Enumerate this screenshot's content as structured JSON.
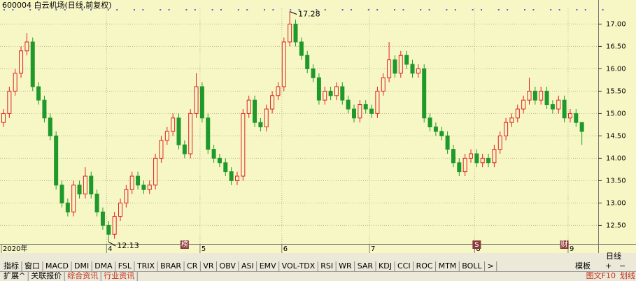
{
  "chart_data": {
    "type": "candlestick",
    "title": "600004 白云机场(日线,前复权)",
    "categories": [
      "2020年",
      null,
      null,
      null,
      null,
      null,
      null,
      null,
      null,
      null,
      null,
      null,
      null,
      null,
      null,
      null,
      null,
      null,
      "4",
      null,
      null,
      null,
      null,
      null,
      null,
      null,
      null,
      null,
      null,
      null,
      null,
      null,
      null,
      null,
      "5",
      null,
      null,
      null,
      null,
      null,
      null,
      null,
      null,
      null,
      null,
      null,
      null,
      null,
      "6",
      null,
      null,
      null,
      null,
      null,
      null,
      null,
      null,
      null,
      null,
      null,
      null,
      null,
      null,
      "7",
      null,
      null,
      null,
      null,
      null,
      null,
      null,
      null,
      null,
      null,
      null,
      null,
      null,
      null,
      null,
      null,
      null,
      "8",
      null,
      null,
      null,
      null,
      null,
      null,
      null,
      null,
      null,
      null,
      null,
      null,
      null,
      null,
      null,
      "9",
      null,
      null
    ],
    "events": [
      null,
      null,
      null,
      null,
      null,
      null,
      null,
      null,
      null,
      null,
      null,
      null,
      null,
      null,
      null,
      null,
      null,
      null,
      null,
      null,
      null,
      null,
      null,
      null,
      null,
      null,
      null,
      null,
      null,
      null,
      null,
      "榜",
      null,
      null,
      null,
      null,
      null,
      null,
      null,
      null,
      null,
      null,
      null,
      null,
      null,
      null,
      null,
      null,
      null,
      null,
      null,
      null,
      null,
      null,
      null,
      null,
      null,
      null,
      null,
      null,
      null,
      null,
      null,
      null,
      null,
      null,
      null,
      null,
      null,
      null,
      null,
      null,
      null,
      null,
      null,
      null,
      null,
      null,
      null,
      null,
      null,
      "S",
      null,
      null,
      null,
      null,
      null,
      null,
      null,
      null,
      null,
      null,
      null,
      null,
      null,
      null,
      "财",
      null,
      null,
      null
    ],
    "open": [
      14.8,
      15.0,
      15.5,
      15.9,
      16.4,
      16.6,
      15.6,
      15.3,
      14.9,
      14.5,
      13.4,
      13.0,
      12.8,
      13.4,
      13.2,
      13.6,
      13.2,
      12.8,
      12.5,
      12.3,
      12.7,
      13.0,
      13.3,
      13.6,
      13.4,
      13.3,
      13.4,
      14.0,
      14.4,
      14.6,
      14.9,
      14.3,
      14.1,
      15.0,
      15.6,
      14.9,
      14.2,
      14.0,
      13.9,
      13.7,
      13.5,
      13.6,
      15.0,
      15.3,
      14.8,
      14.7,
      15.1,
      15.4,
      15.6,
      16.6,
      17.0,
      16.6,
      16.3,
      16.0,
      15.8,
      15.3,
      15.5,
      15.4,
      15.6,
      15.3,
      15.1,
      14.9,
      15.2,
      15.1,
      15.0,
      15.5,
      15.8,
      16.2,
      15.9,
      16.3,
      16.1,
      15.9,
      16.0,
      14.9,
      14.7,
      14.6,
      14.5,
      14.2,
      13.9,
      13.7,
      14.0,
      14.1,
      13.9,
      14.0,
      13.9,
      14.2,
      14.5,
      14.8,
      14.9,
      15.1,
      15.3,
      15.5,
      15.3,
      15.5,
      15.2,
      15.1,
      15.3,
      14.9,
      15.0,
      14.8
    ],
    "high": [
      15.1,
      15.6,
      16.0,
      16.5,
      16.8,
      16.7,
      15.7,
      15.4,
      15.0,
      14.6,
      13.5,
      13.1,
      13.5,
      13.5,
      13.8,
      13.7,
      13.3,
      12.9,
      12.6,
      12.8,
      13.1,
      13.4,
      13.7,
      13.7,
      13.5,
      13.5,
      14.1,
      14.5,
      14.7,
      15.0,
      15.0,
      14.4,
      15.1,
      15.9,
      15.7,
      15.0,
      14.3,
      14.1,
      14.0,
      13.8,
      13.7,
      15.1,
      15.4,
      15.4,
      14.9,
      15.2,
      15.5,
      15.7,
      16.7,
      17.28,
      17.1,
      16.7,
      16.4,
      16.1,
      15.9,
      15.6,
      15.6,
      15.7,
      15.7,
      15.4,
      15.2,
      15.3,
      15.3,
      15.2,
      15.6,
      15.9,
      16.6,
      16.3,
      16.4,
      16.4,
      16.2,
      16.1,
      16.1,
      15.0,
      14.8,
      14.7,
      14.6,
      14.3,
      14.0,
      14.1,
      14.2,
      14.2,
      14.1,
      14.1,
      14.3,
      14.6,
      14.9,
      15.0,
      15.2,
      15.4,
      15.8,
      15.6,
      15.6,
      15.6,
      15.3,
      15.4,
      15.4,
      15.1,
      15.1,
      14.8
    ],
    "low": [
      14.7,
      14.9,
      15.4,
      15.8,
      16.3,
      15.5,
      15.2,
      14.8,
      14.4,
      13.3,
      12.9,
      12.7,
      12.7,
      13.1,
      13.1,
      13.1,
      12.7,
      12.4,
      12.13,
      12.2,
      12.6,
      12.9,
      13.2,
      13.3,
      13.2,
      13.2,
      13.3,
      13.9,
      14.3,
      14.5,
      14.2,
      14.0,
      14.0,
      14.9,
      14.8,
      14.1,
      13.9,
      13.8,
      13.6,
      13.4,
      13.4,
      13.5,
      14.9,
      14.7,
      14.6,
      14.6,
      15.0,
      15.3,
      15.5,
      16.5,
      16.5,
      16.2,
      15.9,
      15.7,
      15.2,
      15.2,
      15.3,
      15.3,
      15.2,
      15.0,
      14.8,
      14.8,
      15.0,
      14.9,
      14.9,
      15.4,
      15.7,
      15.8,
      15.8,
      16.0,
      15.8,
      15.8,
      14.8,
      14.6,
      14.5,
      14.4,
      14.1,
      13.8,
      13.6,
      13.6,
      13.9,
      13.8,
      13.8,
      13.8,
      13.8,
      14.1,
      14.4,
      14.7,
      14.8,
      15.0,
      15.2,
      15.2,
      15.2,
      15.1,
      15.0,
      15.0,
      14.8,
      14.8,
      14.7,
      14.3
    ],
    "close": [
      15.0,
      15.5,
      15.9,
      16.4,
      16.6,
      15.6,
      15.3,
      14.9,
      14.5,
      13.4,
      13.0,
      12.8,
      13.4,
      13.2,
      13.6,
      13.2,
      12.8,
      12.5,
      12.3,
      12.7,
      13.0,
      13.3,
      13.6,
      13.4,
      13.3,
      13.4,
      14.0,
      14.4,
      14.6,
      14.9,
      14.3,
      14.1,
      15.0,
      15.6,
      14.9,
      14.2,
      14.0,
      13.9,
      13.7,
      13.5,
      13.6,
      15.0,
      15.3,
      14.8,
      14.7,
      15.1,
      15.4,
      15.6,
      16.6,
      17.0,
      16.6,
      16.3,
      16.0,
      15.8,
      15.3,
      15.5,
      15.4,
      15.6,
      15.3,
      15.1,
      14.9,
      15.2,
      15.1,
      15.0,
      15.5,
      15.8,
      16.2,
      15.9,
      16.3,
      16.1,
      15.9,
      16.0,
      14.9,
      14.7,
      14.6,
      14.5,
      14.2,
      13.9,
      13.7,
      14.0,
      14.1,
      13.9,
      14.0,
      13.9,
      14.2,
      14.5,
      14.8,
      14.9,
      15.1,
      15.3,
      15.5,
      15.3,
      15.5,
      15.2,
      15.1,
      15.3,
      14.9,
      15.0,
      14.8,
      14.6
    ],
    "up_color": "#e02020",
    "down_color": "#1f9a2a",
    "background": "#f7f7c6",
    "annotations": [
      {
        "index": 49,
        "field": "high"
      },
      {
        "index": 18,
        "field": "low"
      }
    ],
    "ylim": [
      12.1,
      17.35
    ],
    "yticks": [
      {
        "value": 12.5,
        "label": "12.50"
      },
      {
        "value": 13,
        "label": "13.00"
      },
      {
        "value": 13.5,
        "label": "13.50"
      },
      {
        "value": 14,
        "label": "14.00"
      },
      {
        "value": 14.5,
        "label": "14.50"
      },
      {
        "value": 15,
        "label": "15.00"
      },
      {
        "value": 15.5,
        "label": "15.50"
      },
      {
        "value": 16,
        "label": "16.00"
      },
      {
        "value": 16.5,
        "label": "16.50"
      },
      {
        "value": 17,
        "label": "17.00"
      }
    ],
    "grid": true
  },
  "toolbar": {
    "period": "日线",
    "tabs": [
      "指标",
      "窗口",
      "MACD",
      "DMI",
      "DMA",
      "FSL",
      "TRIX",
      "BRAR",
      "CR",
      "VR",
      "OBV",
      "ASI",
      "EMV",
      "VOL-TDX",
      "RSI",
      "WR",
      "SAR",
      "KDJ",
      "CCI",
      "ROC",
      "MTM",
      "BOLL",
      ">"
    ],
    "template": "模板",
    "buttons": [
      "+",
      "−"
    ]
  },
  "bottom_bar": {
    "tabs": [
      "扩展^",
      "关联报价",
      "综合资讯",
      "行业资讯"
    ],
    "right": [
      "图文F10",
      "划线"
    ]
  }
}
